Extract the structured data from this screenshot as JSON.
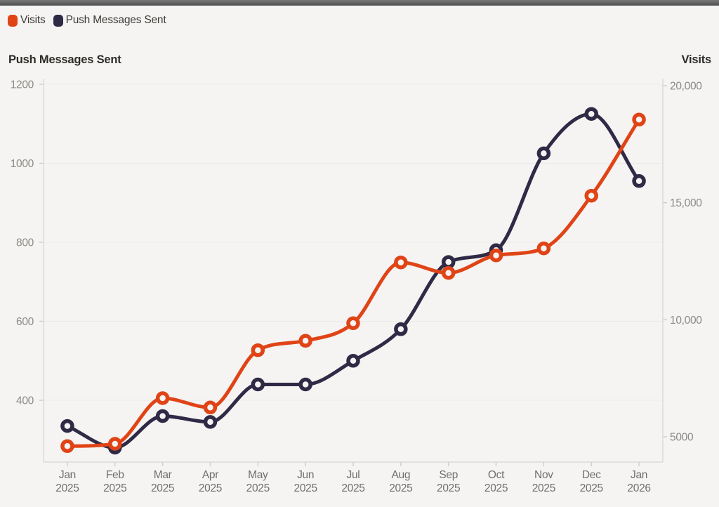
{
  "page": {
    "background": "#F5F4F2",
    "top_bar_color": "#5C5C5C"
  },
  "legend": [
    {
      "label": "Visits",
      "color": "#E04416"
    },
    {
      "label": "Push Messages Sent",
      "color": "#2F2A45"
    }
  ],
  "axis_titles": {
    "left": "Push Messages Sent",
    "right": "Visits"
  },
  "chart_data": {
    "type": "line",
    "title": "",
    "categories": [
      "Jan 2025",
      "Feb 2025",
      "Mar 2025",
      "Apr 2025",
      "May 2025",
      "Jun 2025",
      "Jul 2025",
      "Aug 2025",
      "Sep 2025",
      "Oct 2025",
      "Nov 2025",
      "Dec 2025",
      "Jan 2026"
    ],
    "series": [
      {
        "name": "Push Messages Sent",
        "axis": "left",
        "color": "#2F2A45",
        "values": [
          335,
          280,
          360,
          345,
          440,
          440,
          500,
          580,
          750,
          780,
          1025,
          1125,
          955
        ]
      },
      {
        "name": "Visits",
        "axis": "right",
        "color": "#E04416",
        "values": [
          4600,
          4700,
          6650,
          6250,
          8700,
          9100,
          9850,
          12450,
          12000,
          12750,
          13050,
          15300,
          18550
        ]
      }
    ],
    "left_axis": {
      "title": "Push Messages Sent",
      "tick_labels": [
        "400",
        "600",
        "800",
        "1000",
        "1200"
      ],
      "tick_values": [
        400,
        600,
        800,
        1000,
        1200
      ],
      "visible_range": [
        244,
        1218
      ]
    },
    "right_axis": {
      "title": "Visits",
      "tick_labels": [
        "5000",
        "10,000",
        "15,000",
        "20,000"
      ],
      "tick_values": [
        5000,
        10000,
        15000,
        20000
      ],
      "visible_range": [
        3920,
        20360
      ]
    },
    "grid": "horizontal",
    "legend_position": "top-left",
    "curve": "monotone"
  }
}
